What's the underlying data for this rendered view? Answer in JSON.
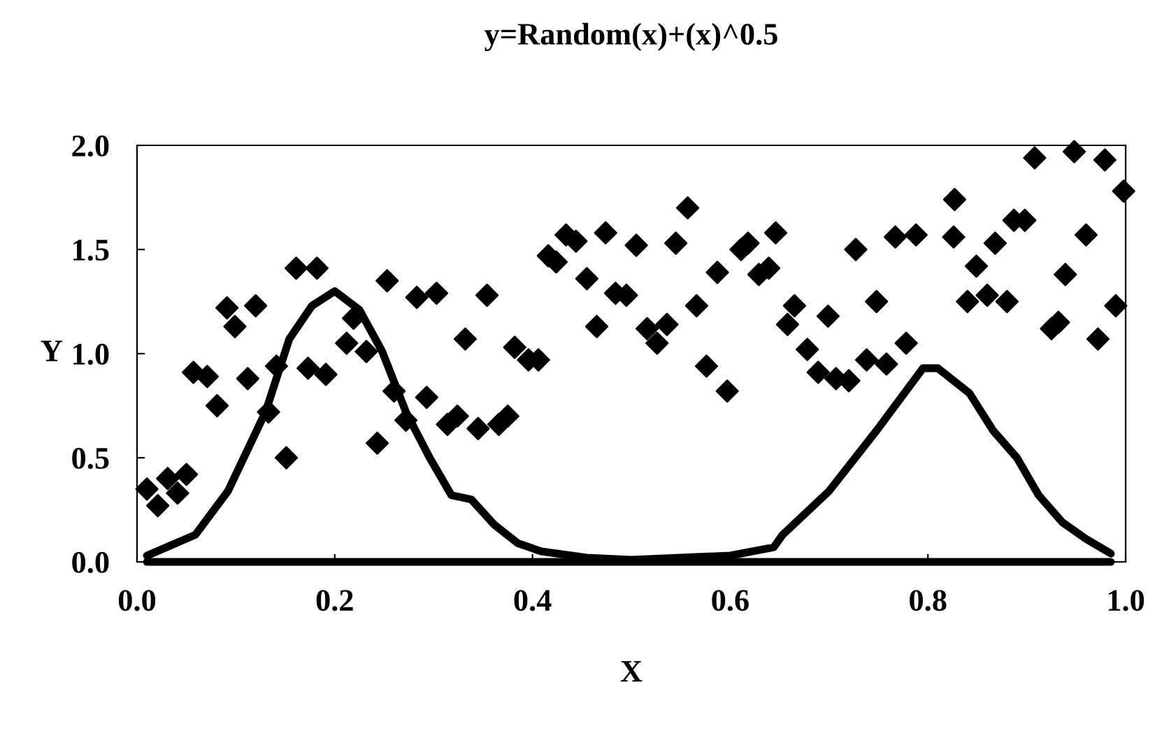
{
  "chart_data": {
    "type": "scatter",
    "title": "y=Random(x)+(x)^0.5",
    "xlabel": "X",
    "ylabel": "Y",
    "xlim": [
      0.0,
      1.0
    ],
    "ylim": [
      0.0,
      2.0
    ],
    "xticks": [
      {
        "value": 0,
        "label": "0.0"
      },
      0.2,
      0.4,
      0.6,
      0.8,
      {
        "value": 1,
        "label": "1.0"
      }
    ],
    "yticks": [
      {
        "value": 0,
        "label": "0.0"
      },
      0.5,
      {
        "value": 1,
        "label": "1.0"
      },
      1.5,
      {
        "value": 2,
        "label": "2.0"
      }
    ],
    "grid": false,
    "legend": false,
    "marker": "diamond",
    "series": [
      {
        "color": "#000000",
        "x": [
          0.01,
          0.021,
          0.031,
          0.041,
          0.05,
          0.057,
          0.071,
          0.081,
          0.091,
          0.099,
          0.112,
          0.12,
          0.133,
          0.141,
          0.151,
          0.161,
          0.173,
          0.182,
          0.191,
          0.212,
          0.219,
          0.232,
          0.243,
          0.253,
          0.26,
          0.272,
          0.283,
          0.293,
          0.303,
          0.314,
          0.324,
          0.332,
          0.345,
          0.354,
          0.366,
          0.375,
          0.382,
          0.396,
          0.406,
          0.416,
          0.424,
          0.434,
          0.444,
          0.455,
          0.465,
          0.474,
          0.484,
          0.495,
          0.505,
          0.516,
          0.526,
          0.536,
          0.545,
          0.557,
          0.566,
          0.576,
          0.587,
          0.597,
          0.611,
          0.618,
          0.629,
          0.639,
          0.646,
          0.658,
          0.665,
          0.678,
          0.689,
          0.699,
          0.707,
          0.72,
          0.727,
          0.738,
          0.748,
          0.758,
          0.767,
          0.778,
          0.788,
          0.826,
          0.827,
          0.84,
          0.849,
          0.86,
          0.868,
          0.88,
          0.887,
          0.898,
          0.908,
          0.925,
          0.932,
          0.939,
          0.948,
          0.96,
          0.972,
          0.979,
          0.99,
          0.998
        ],
        "values": [
          0.35,
          0.27,
          0.4,
          0.33,
          0.42,
          0.91,
          0.89,
          0.75,
          1.22,
          1.13,
          0.88,
          1.23,
          0.72,
          0.94,
          0.5,
          1.41,
          0.93,
          1.41,
          0.9,
          1.05,
          1.17,
          1.01,
          0.57,
          1.35,
          0.82,
          0.68,
          1.27,
          0.79,
          1.29,
          0.66,
          0.7,
          1.07,
          0.64,
          1.28,
          0.66,
          0.7,
          1.03,
          0.97,
          0.97,
          1.47,
          1.44,
          1.57,
          1.54,
          1.36,
          1.13,
          1.58,
          1.29,
          1.28,
          1.52,
          1.12,
          1.05,
          1.14,
          1.53,
          1.7,
          1.23,
          0.94,
          1.39,
          0.82,
          1.5,
          1.53,
          1.38,
          1.41,
          1.58,
          1.14,
          1.23,
          1.02,
          0.91,
          1.18,
          0.88,
          0.87,
          1.5,
          0.97,
          1.25,
          0.95,
          1.56,
          1.05,
          1.57,
          1.56,
          1.74,
          1.25,
          1.42,
          1.28,
          1.53,
          1.25,
          1.64,
          1.64,
          1.94,
          1.12,
          1.15,
          1.38,
          1.97,
          1.57,
          1.07,
          1.93,
          1.23,
          1.78
        ]
      },
      {
        "type": "line",
        "color": "#000000",
        "marker": "none",
        "x": [
          0.01,
          0.059,
          0.092,
          0.13,
          0.154,
          0.177,
          0.2,
          0.225,
          0.248,
          0.272,
          0.296,
          0.318,
          0.338,
          0.361,
          0.385,
          0.409,
          0.455,
          0.5,
          0.6,
          0.644,
          0.653,
          0.7,
          0.748,
          0.795,
          0.81,
          0.842,
          0.866,
          0.89,
          0.912,
          0.936,
          0.96,
          0.985
        ],
        "values": [
          0.03,
          0.13,
          0.34,
          0.72,
          1.07,
          1.23,
          1.3,
          1.21,
          1.01,
          0.72,
          0.5,
          0.32,
          0.3,
          0.18,
          0.09,
          0.05,
          0.02,
          0.01,
          0.03,
          0.07,
          0.13,
          0.34,
          0.63,
          0.93,
          0.93,
          0.81,
          0.63,
          0.5,
          0.32,
          0.19,
          0.11,
          0.04
        ]
      },
      {
        "type": "line",
        "color": "#000000",
        "marker": "none",
        "x": [
          0.01,
          0.985
        ],
        "values": [
          0.0,
          0.0
        ]
      }
    ]
  }
}
